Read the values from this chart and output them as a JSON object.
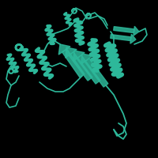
{
  "background_color": "#000000",
  "main_color": "#2db89a",
  "figsize": [
    2.0,
    2.0
  ],
  "dpi": 100
}
